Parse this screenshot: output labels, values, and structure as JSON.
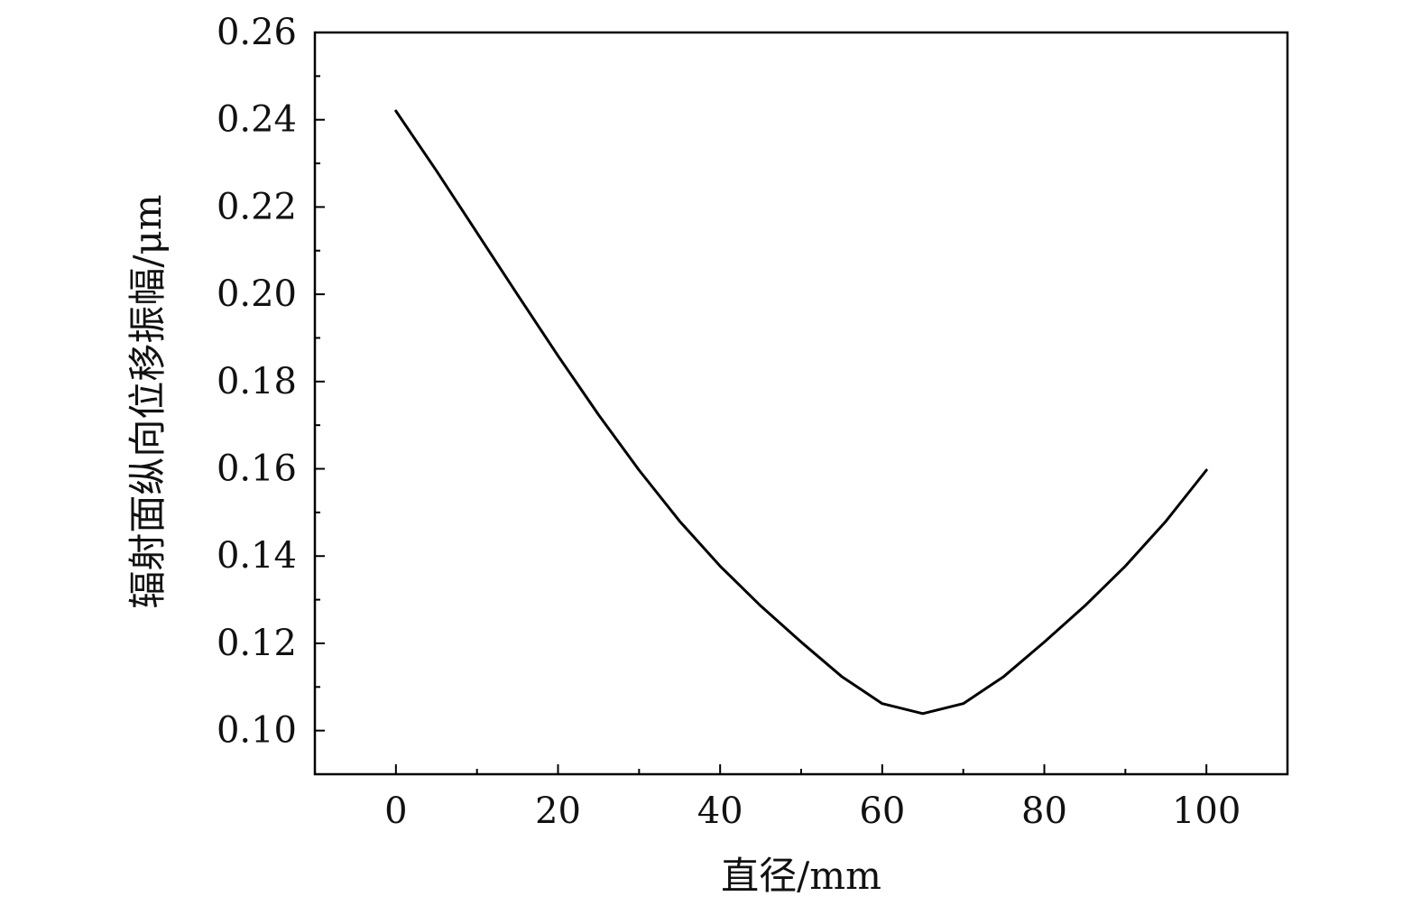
{
  "chart_data": {
    "type": "line",
    "title": "",
    "xlabel": "直径/mm",
    "ylabel": "辐射面纵向位移振幅/μm",
    "xlim": [
      -10,
      110
    ],
    "ylim": [
      0.09,
      0.26
    ],
    "x_ticks": [
      0,
      20,
      40,
      60,
      80,
      100
    ],
    "x_tick_labels": [
      "0",
      "20",
      "40",
      "60",
      "80",
      "100"
    ],
    "y_ticks": [
      0.1,
      0.12,
      0.14,
      0.16,
      0.18,
      0.2,
      0.22,
      0.24,
      0.26
    ],
    "y_tick_labels": [
      "0.10",
      "0.12",
      "0.14",
      "0.16",
      "0.18",
      "0.20",
      "0.22",
      "0.24",
      "0.26"
    ],
    "grid": false,
    "legend": "none",
    "line_color": "#000000",
    "series": [
      {
        "x": [
          0,
          5,
          10,
          15,
          20,
          25,
          30,
          35,
          40,
          45,
          50,
          55,
          60,
          65,
          70,
          75,
          80,
          85,
          90,
          95,
          100
        ],
        "y": [
          0.242,
          0.2283,
          0.2141,
          0.1999,
          0.1859,
          0.1724,
          0.1597,
          0.148,
          0.1377,
          0.1286,
          0.1203,
          0.1124,
          0.1062,
          0.1039,
          0.1062,
          0.1124,
          0.1203,
          0.1286,
          0.1377,
          0.148,
          0.1597
        ]
      }
    ]
  }
}
